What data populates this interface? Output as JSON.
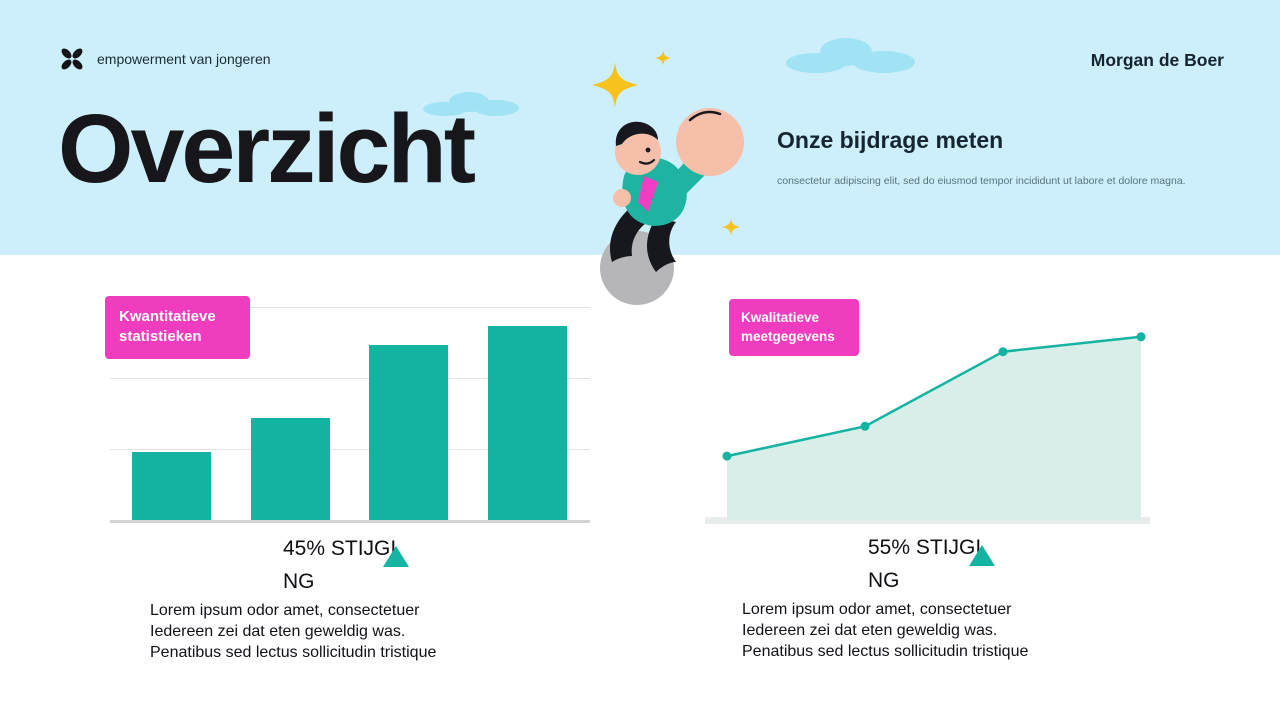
{
  "header": {
    "logo_text": "empowerment van jongeren",
    "author": "Morgan de Boer",
    "title": "Overzicht",
    "section_heading": "Onze bijdrage meten",
    "section_subtext": "consectetur adipiscing elit, sed do eiusmod tempor incididunt ut labore et dolore magna."
  },
  "left_panel": {
    "badge_line1": "Kwantitatieve",
    "badge_line2": "statistieken",
    "stat_text": "45% STIJGING",
    "stat_lines": [
      "45% STIJGI",
      "NG"
    ],
    "paragraph_lines": [
      "Lorem ipsum odor amet, consectetuer",
      "Iedereen zei dat eten geweldig was.",
      "Penatibus sed lectus sollicitudin tristique"
    ]
  },
  "right_panel": {
    "badge_line1": "Kwalitatieve",
    "badge_line2": "meetgegevens",
    "stat_text": "55% STIJGING",
    "stat_lines": [
      "55% STIJGI",
      "NG"
    ],
    "paragraph_lines": [
      "Lorem ipsum odor amet, consectetuer",
      "Iedereen zei dat eten geweldig was.",
      "Penatibus sed lectus sollicitudin tristique"
    ]
  },
  "colors": {
    "header_bg": "#cdeffb",
    "teal": "#14b3a2",
    "pink": "#f03cbe",
    "area_fill": "#d9eee9",
    "star_yellow": "#f7c11e",
    "cloud_blue": "#a0e3f4",
    "text_dark": "#15151a",
    "grid_gray": "#e3e3e3"
  },
  "chart_data": [
    {
      "type": "bar",
      "label": "Kwantitatieve statistieken",
      "values": [
        32,
        48,
        82,
        91
      ],
      "ylim": [
        0,
        100
      ],
      "grid": true,
      "annotation": "45% STIJGING",
      "color": "#14b3a2"
    },
    {
      "type": "area",
      "label": "Kwalitatieve meetgegevens",
      "x": [
        1,
        2,
        3,
        4
      ],
      "values": [
        30,
        44,
        79,
        86
      ],
      "ylim": [
        0,
        100
      ],
      "grid": false,
      "annotation": "55% STIJGING",
      "line_color": "#14b3a2",
      "fill_color": "#d9eee9"
    }
  ]
}
